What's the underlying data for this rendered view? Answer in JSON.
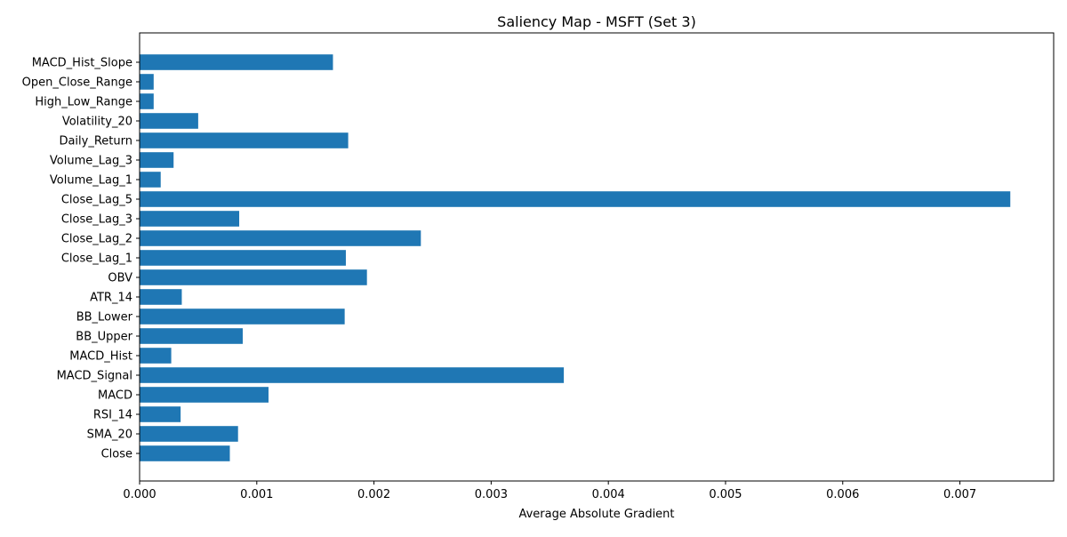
{
  "chart_data": {
    "type": "bar",
    "orientation": "horizontal",
    "title": "Saliency Map - MSFT (Set 3)",
    "xlabel": "Average Absolute Gradient",
    "ylabel": "",
    "xlim": [
      0,
      0.0078
    ],
    "xticks": [
      0,
      0.001,
      0.002,
      0.003,
      0.004,
      0.005,
      0.006,
      0.007
    ],
    "xtick_labels": [
      "0.000",
      "0.001",
      "0.002",
      "0.003",
      "0.004",
      "0.005",
      "0.006",
      "0.007"
    ],
    "grid": false,
    "bar_color": "#1f77b4",
    "categories": [
      "Close",
      "SMA_20",
      "RSI_14",
      "MACD",
      "MACD_Signal",
      "MACD_Hist",
      "BB_Upper",
      "BB_Lower",
      "ATR_14",
      "OBV",
      "Close_Lag_1",
      "Close_Lag_2",
      "Close_Lag_3",
      "Close_Lag_5",
      "Volume_Lag_1",
      "Volume_Lag_3",
      "Daily_Return",
      "Volatility_20",
      "High_Low_Range",
      "Open_Close_Range",
      "MACD_Hist_Slope"
    ],
    "values": [
      0.00077,
      0.00084,
      0.00035,
      0.0011,
      0.00362,
      0.00027,
      0.00088,
      0.00175,
      0.00036,
      0.00194,
      0.00176,
      0.0024,
      0.00085,
      0.00743,
      0.00018,
      0.00029,
      0.00178,
      0.0005,
      0.00012,
      0.00012,
      0.00165
    ]
  }
}
